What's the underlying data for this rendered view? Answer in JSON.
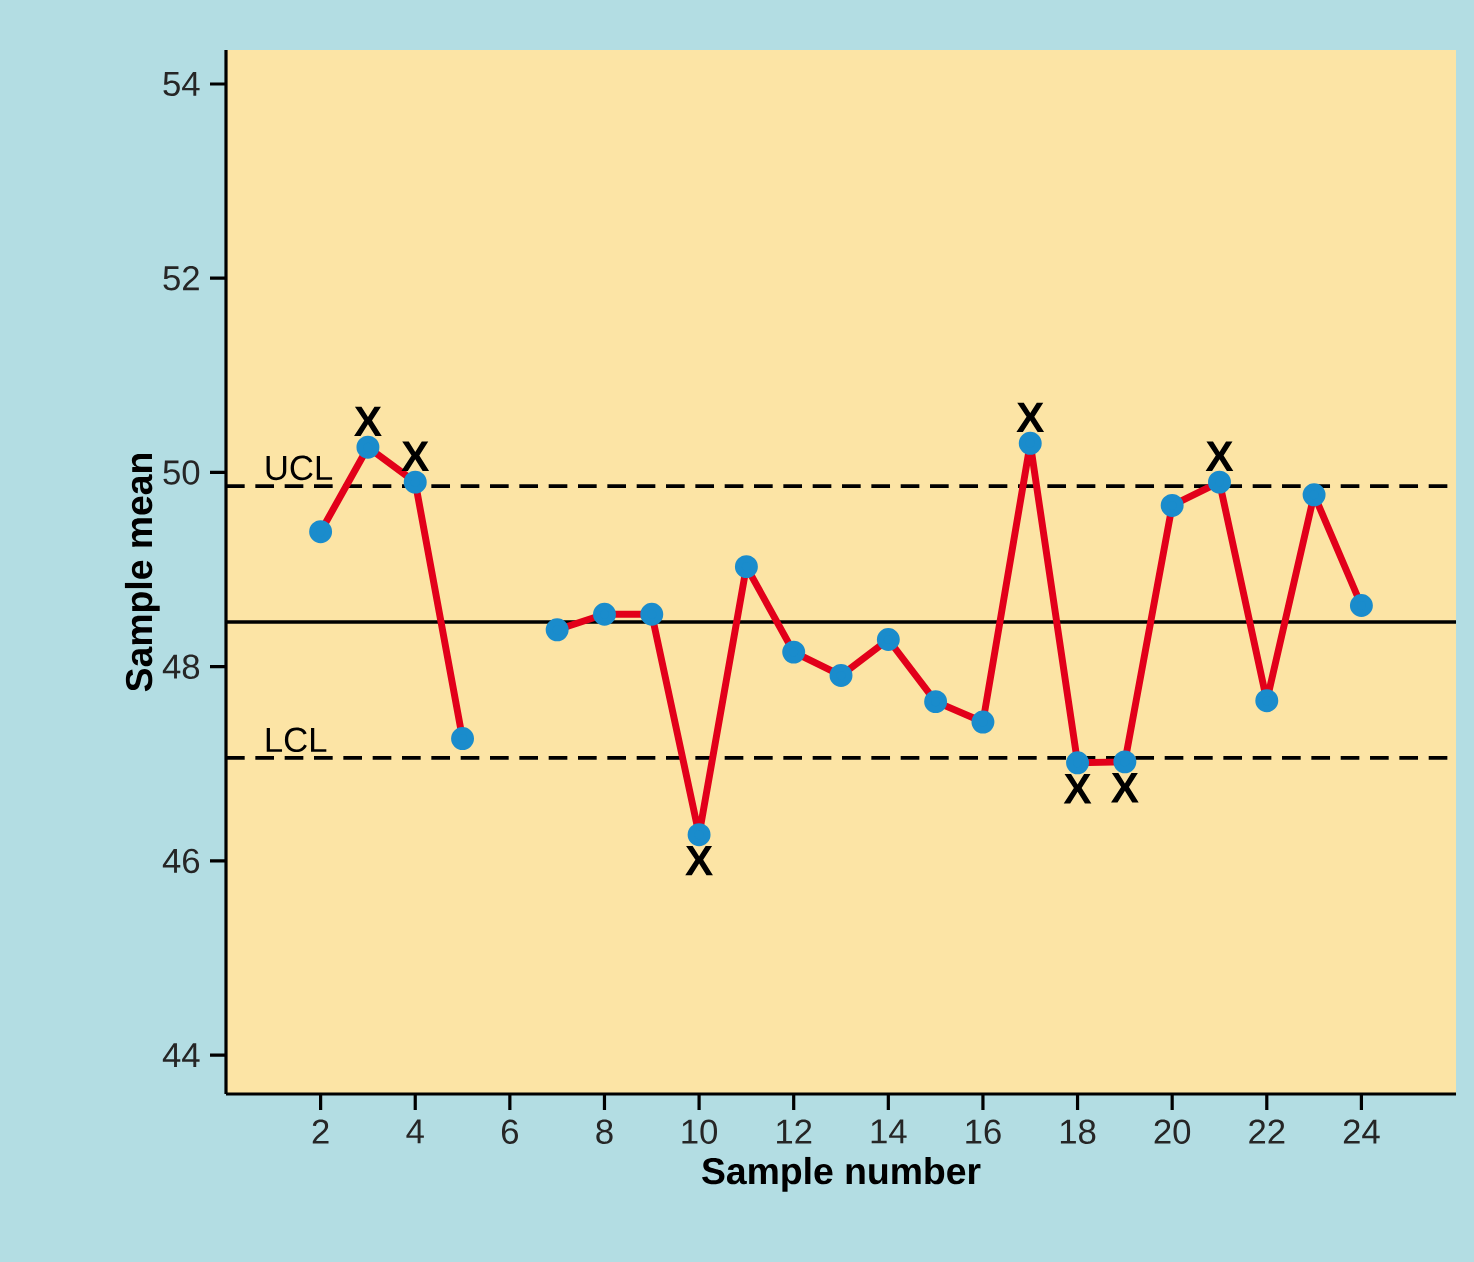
{
  "chart_data": {
    "type": "line",
    "xlabel": "Sample number",
    "ylabel": "Sample mean",
    "x": [
      2,
      3,
      4,
      5,
      6,
      7,
      8,
      9,
      10,
      11,
      12,
      13,
      14,
      15,
      16,
      17,
      18,
      19,
      20,
      21,
      22,
      23,
      24
    ],
    "series": [
      {
        "color": "#e2001a",
        "values": [
          49.39,
          50.26,
          49.9,
          47.26,
          null,
          48.38,
          48.54,
          48.54,
          46.27,
          49.03,
          48.15,
          47.91,
          48.28,
          47.64,
          47.43,
          50.3,
          47.01,
          47.02,
          49.66,
          49.9,
          47.65,
          49.77,
          48.63
        ]
      }
    ],
    "xlim": [
      0,
      26
    ],
    "xticks": [
      2,
      4,
      6,
      8,
      10,
      12,
      14,
      16,
      18,
      20,
      22,
      24
    ],
    "ylim": [
      43.6,
      54.35
    ],
    "yticks": [
      44,
      46,
      48,
      50,
      52,
      54
    ],
    "grid": false,
    "legend": false,
    "marker": "circle",
    "line_style": "solid",
    "ref_lines": [
      {
        "axis": "y",
        "value": 49.86,
        "label": "UCL",
        "line_style": "dashed"
      },
      {
        "axis": "y",
        "value": 48.46,
        "line_style": "solid"
      },
      {
        "axis": "y",
        "value": 47.06,
        "label": "LCL",
        "line_style": "dashed"
      }
    ],
    "annotations": [
      {
        "text": "X",
        "x": 3,
        "y": 50.26
      },
      {
        "text": "X",
        "x": 4,
        "y": 49.9
      },
      {
        "text": "X",
        "x": 10,
        "y": 46.27
      },
      {
        "text": "X",
        "x": 17,
        "y": 50.3
      },
      {
        "text": "X",
        "x": 18,
        "y": 47.01
      },
      {
        "text": "X",
        "x": 19,
        "y": 47.02
      },
      {
        "text": "X",
        "x": 21,
        "y": 49.9
      }
    ]
  }
}
